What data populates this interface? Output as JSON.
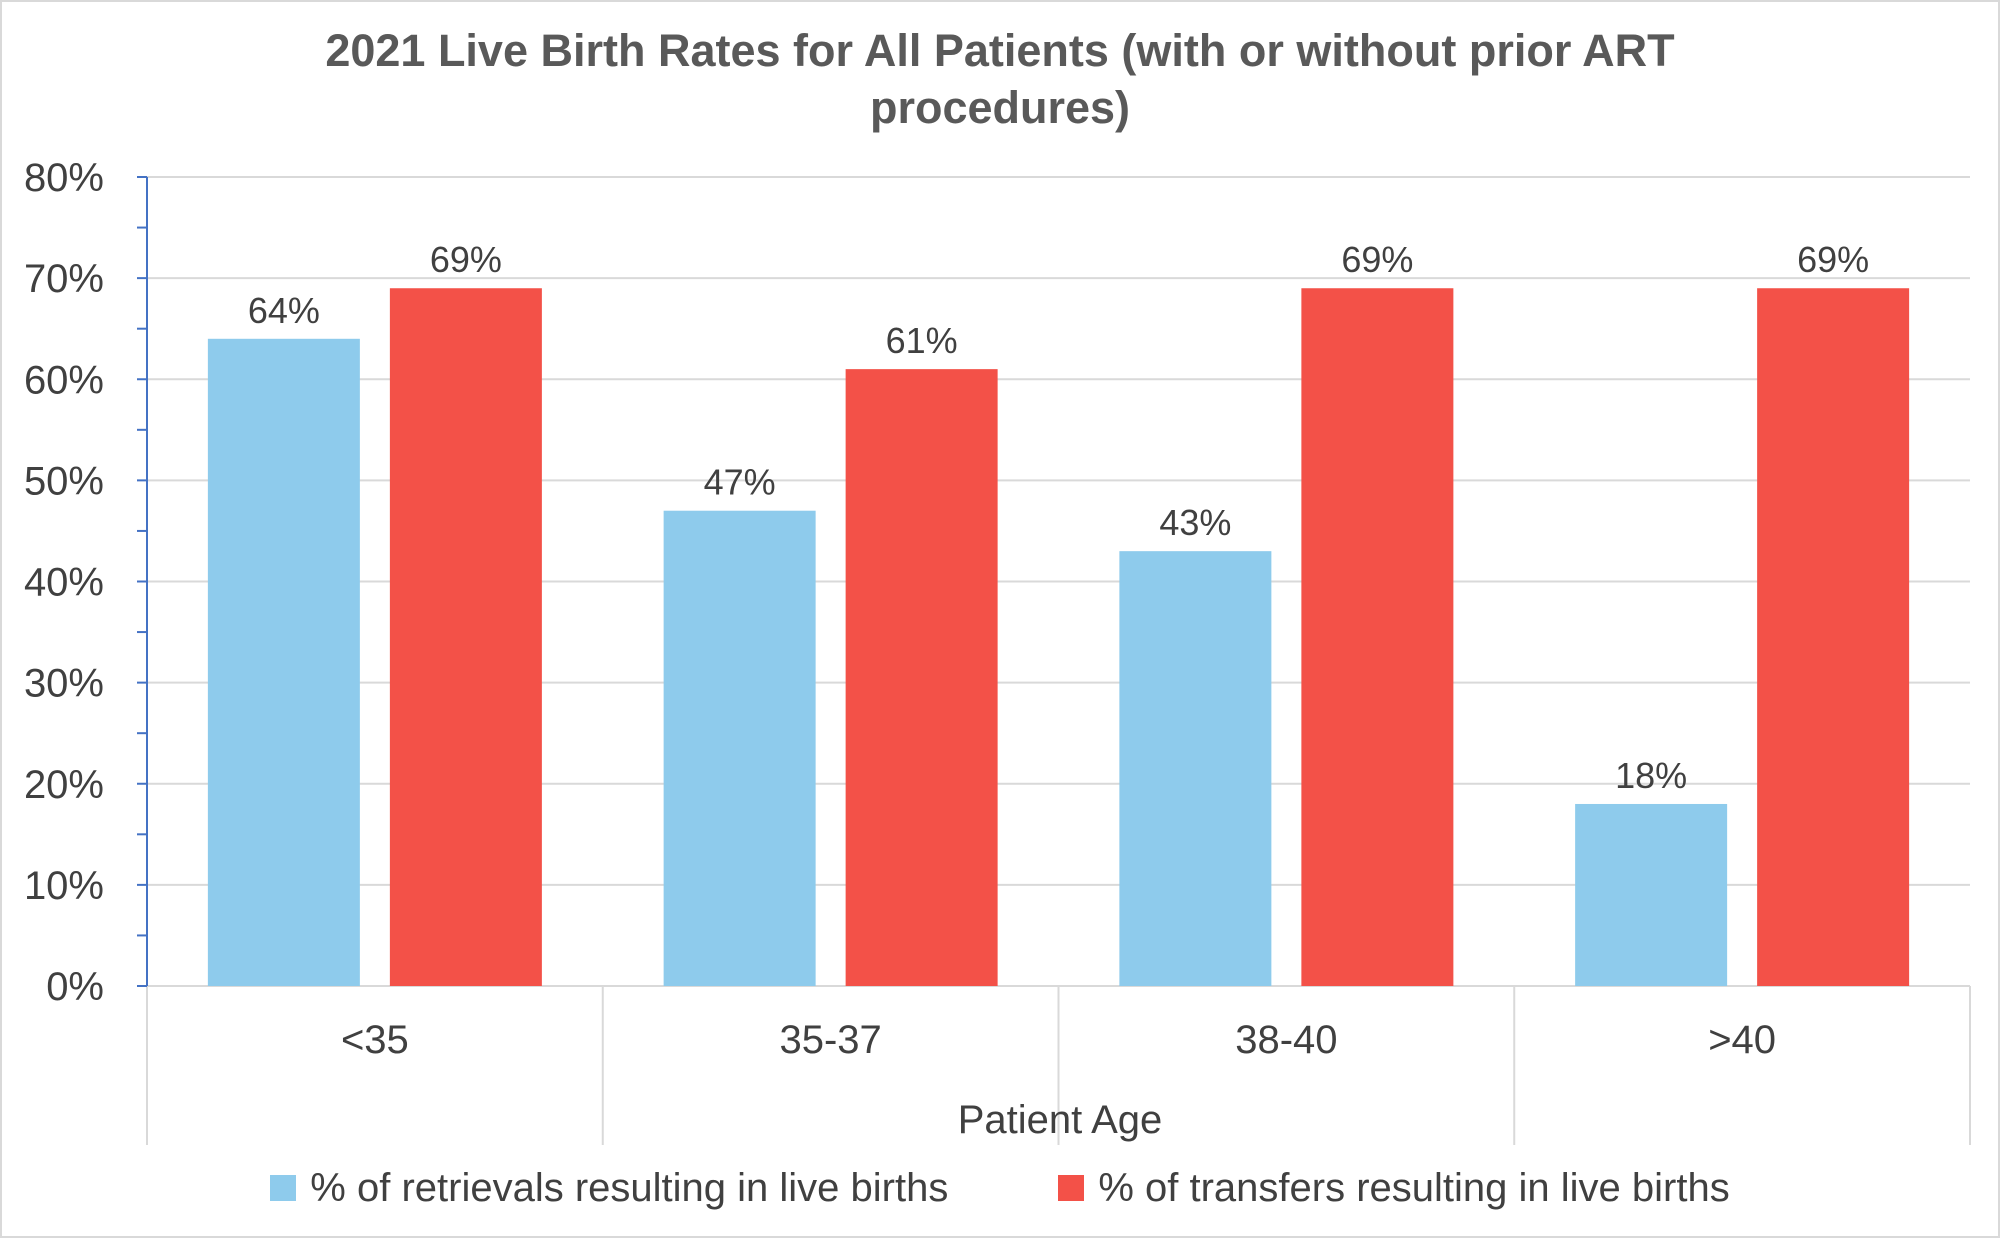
{
  "chart_data": {
    "type": "bar",
    "title_lines": [
      "2021 Live Birth Rates for All Patients (with or without prior ART",
      "procedures)"
    ],
    "xlabel": "Patient Age",
    "ylabel": "",
    "categories": [
      "<35",
      "35-37",
      "38-40",
      ">40"
    ],
    "series": [
      {
        "name": "% of retrievals resulting in live births",
        "values": [
          64,
          47,
          43,
          18
        ],
        "color": "#8ecbec"
      },
      {
        "name": "% of transfers resulting in live births",
        "values": [
          69,
          61,
          69,
          69
        ],
        "color": "#f35148"
      }
    ],
    "ylim": [
      0,
      80
    ],
    "yticks": [
      0,
      10,
      20,
      30,
      40,
      50,
      60,
      70,
      80
    ],
    "ytick_format": "percent",
    "data_labels": true,
    "grid": true,
    "legend": "bottom"
  }
}
